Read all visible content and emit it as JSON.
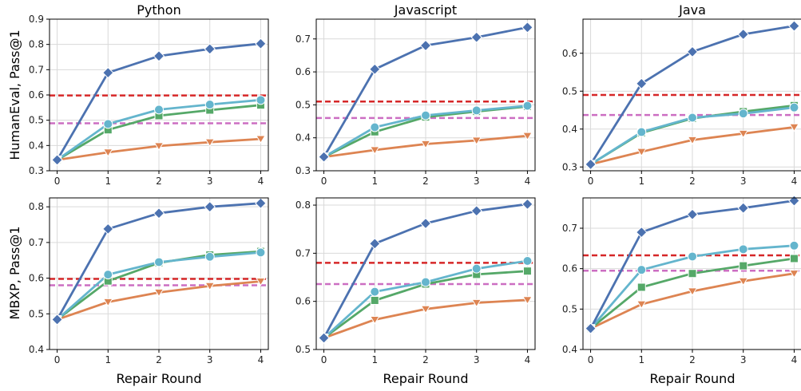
{
  "figure": {
    "column_titles": [
      "Python",
      "Javascript",
      "Java"
    ],
    "row_ylabels": [
      "HumanEval, Pass@1",
      "MBXP, Pass@1"
    ],
    "xlabel": "Repair Round"
  },
  "colors": {
    "series": [
      "#4c72b0",
      "#64b5cd",
      "#55a868",
      "#dd8452"
    ],
    "reference": [
      "#d62728",
      "#cc6ec2"
    ],
    "grid": "#d9d9d9"
  },
  "chart_data": [
    {
      "type": "line",
      "row": 0,
      "col": 0,
      "title": "Python",
      "ylabel": "HumanEval, Pass@1",
      "xlabel": "",
      "x": [
        0,
        1,
        2,
        3,
        4
      ],
      "ylim": [
        0.3,
        0.9
      ],
      "yticks": [
        "0.3",
        "0.4",
        "0.5",
        "0.6",
        "0.7",
        "0.8",
        "0.9"
      ],
      "series": [
        {
          "marker": "diamond",
          "values": [
            0.343,
            0.688,
            0.754,
            0.782,
            0.803
          ]
        },
        {
          "marker": "circle",
          "values": [
            0.343,
            0.485,
            0.542,
            0.562,
            0.58
          ]
        },
        {
          "marker": "square",
          "values": [
            0.343,
            0.462,
            0.518,
            0.54,
            0.56
          ]
        },
        {
          "marker": "triangle-down",
          "values": [
            0.343,
            0.373,
            0.398,
            0.413,
            0.426
          ]
        }
      ],
      "reference_lines": [
        0.598,
        0.488
      ],
      "grid": true
    },
    {
      "type": "line",
      "row": 0,
      "col": 1,
      "title": "Javascript",
      "ylabel": "",
      "xlabel": "",
      "x": [
        0,
        1,
        2,
        3,
        4
      ],
      "ylim": [
        0.3,
        0.76
      ],
      "yticks": [
        "0.3",
        "0.4",
        "0.5",
        "0.6",
        "0.7"
      ],
      "series": [
        {
          "marker": "diamond",
          "values": [
            0.342,
            0.608,
            0.68,
            0.705,
            0.735
          ]
        },
        {
          "marker": "circle",
          "values": [
            0.342,
            0.432,
            0.468,
            0.483,
            0.497
          ]
        },
        {
          "marker": "square",
          "values": [
            0.342,
            0.418,
            0.463,
            0.48,
            0.495
          ]
        },
        {
          "marker": "triangle-down",
          "values": [
            0.342,
            0.363,
            0.381,
            0.392,
            0.406
          ]
        }
      ],
      "reference_lines": [
        0.51,
        0.46
      ],
      "grid": true
    },
    {
      "type": "line",
      "row": 0,
      "col": 2,
      "title": "Java",
      "ylabel": "",
      "xlabel": "",
      "x": [
        0,
        1,
        2,
        3,
        4
      ],
      "ylim": [
        0.29,
        0.69
      ],
      "yticks": [
        "0.3",
        "0.4",
        "0.5",
        "0.6"
      ],
      "series": [
        {
          "marker": "diamond",
          "values": [
            0.307,
            0.52,
            0.604,
            0.65,
            0.672
          ]
        },
        {
          "marker": "circle",
          "values": [
            0.307,
            0.392,
            0.43,
            0.441,
            0.457
          ]
        },
        {
          "marker": "square",
          "values": [
            0.307,
            0.39,
            0.428,
            0.446,
            0.462
          ]
        },
        {
          "marker": "triangle-down",
          "values": [
            0.307,
            0.34,
            0.371,
            0.388,
            0.405
          ]
        }
      ],
      "reference_lines": [
        0.49,
        0.437
      ],
      "grid": true
    },
    {
      "type": "line",
      "row": 1,
      "col": 0,
      "title": "",
      "ylabel": "MBXP, Pass@1",
      "xlabel": "Repair Round",
      "x": [
        0,
        1,
        2,
        3,
        4
      ],
      "ylim": [
        0.4,
        0.825
      ],
      "yticks": [
        "0.4",
        "0.5",
        "0.6",
        "0.7",
        "0.8"
      ],
      "series": [
        {
          "marker": "diamond",
          "values": [
            0.484,
            0.738,
            0.782,
            0.8,
            0.81
          ]
        },
        {
          "marker": "circle",
          "values": [
            0.484,
            0.61,
            0.645,
            0.66,
            0.672
          ]
        },
        {
          "marker": "square",
          "values": [
            0.484,
            0.592,
            0.643,
            0.665,
            0.675
          ]
        },
        {
          "marker": "triangle-down",
          "values": [
            0.484,
            0.533,
            0.56,
            0.578,
            0.591
          ]
        }
      ],
      "reference_lines": [
        0.598,
        0.58
      ],
      "grid": true
    },
    {
      "type": "line",
      "row": 1,
      "col": 1,
      "title": "",
      "ylabel": "",
      "xlabel": "Repair Round",
      "x": [
        0,
        1,
        2,
        3,
        4
      ],
      "ylim": [
        0.5,
        0.815
      ],
      "yticks": [
        "0.5",
        "0.6",
        "0.7",
        "0.8"
      ],
      "series": [
        {
          "marker": "diamond",
          "values": [
            0.524,
            0.72,
            0.762,
            0.788,
            0.802
          ]
        },
        {
          "marker": "circle",
          "values": [
            0.524,
            0.62,
            0.64,
            0.668,
            0.684
          ]
        },
        {
          "marker": "square",
          "values": [
            0.524,
            0.602,
            0.636,
            0.656,
            0.663
          ]
        },
        {
          "marker": "triangle-down",
          "values": [
            0.524,
            0.562,
            0.584,
            0.597,
            0.603
          ]
        }
      ],
      "reference_lines": [
        0.68,
        0.636
      ],
      "grid": true
    },
    {
      "type": "line",
      "row": 1,
      "col": 2,
      "title": "",
      "ylabel": "",
      "xlabel": "Repair Round",
      "x": [
        0,
        1,
        2,
        3,
        4
      ],
      "ylim": [
        0.4,
        0.775
      ],
      "yticks": [
        "0.4",
        "0.5",
        "0.6",
        "0.7"
      ],
      "series": [
        {
          "marker": "diamond",
          "values": [
            0.452,
            0.69,
            0.734,
            0.75,
            0.768
          ]
        },
        {
          "marker": "circle",
          "values": [
            0.452,
            0.597,
            0.63,
            0.648,
            0.657
          ]
        },
        {
          "marker": "square",
          "values": [
            0.452,
            0.554,
            0.588,
            0.607,
            0.625
          ]
        },
        {
          "marker": "triangle-down",
          "values": [
            0.452,
            0.512,
            0.544,
            0.569,
            0.588
          ]
        }
      ],
      "reference_lines": [
        0.633,
        0.595
      ],
      "grid": true
    }
  ]
}
